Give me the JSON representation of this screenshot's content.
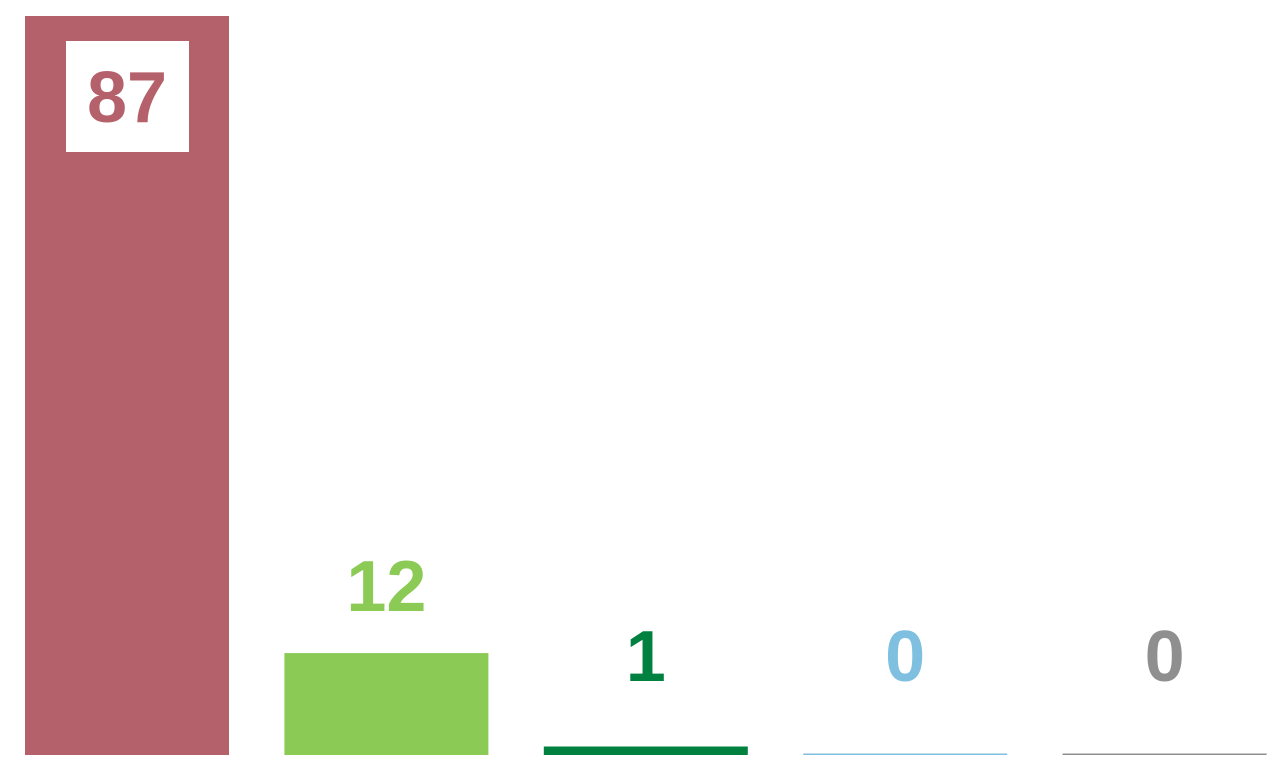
{
  "chart_data": {
    "type": "bar",
    "values": [
      87,
      12,
      1,
      0,
      0
    ],
    "colors": [
      "#b5616b",
      "#8bca55",
      "#00813f",
      "#7fbfdf",
      "#8f8f8f"
    ],
    "ylim": [
      0,
      87
    ]
  }
}
